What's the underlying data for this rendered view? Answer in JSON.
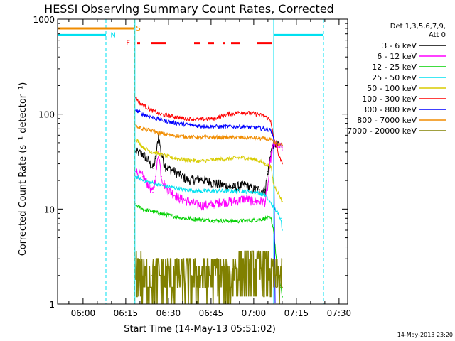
{
  "chart_data": {
    "type": "line",
    "title": "HESSI Observing Summary Count Rates, Corrected",
    "xlabel": "Start Time (14-May-13 05:51:02)",
    "ylabel": "Corrected Count Rate (s⁻¹ detector⁻¹)",
    "xlim_minutes_after_start": [
      0,
      102
    ],
    "ylim": [
      1,
      1000
    ],
    "y_scale": "log",
    "x_ticks": [
      "06:00",
      "06:15",
      "06:30",
      "06:45",
      "07:00",
      "07:15",
      "07:30"
    ],
    "x_tick_minutes": [
      8.97,
      23.97,
      38.97,
      53.97,
      68.97,
      83.97,
      98.97
    ],
    "y_ticks": [
      "1",
      "10",
      "100",
      "1000"
    ],
    "y_tick_values": [
      1,
      10,
      100,
      1000
    ],
    "legend_header": [
      "Det 1,3,5,6,7,9,",
      "Att 0"
    ],
    "legend_position": "right",
    "footer_date": "14-May-2013 23:20",
    "markers": {
      "N": {
        "label": "N",
        "color": "#00e0f0"
      },
      "S": {
        "label": "S",
        "color": "#f08c00"
      },
      "F": {
        "label": "F",
        "color": "#ff0000"
      }
    },
    "bars": [
      {
        "label": "N",
        "color": "#00e0f0",
        "y": 680,
        "segments": [
          [
            0,
            17
          ],
          [
            76,
            93.5
          ]
        ]
      },
      {
        "label": "S",
        "color": "#f08c00",
        "y": 800,
        "segments": [
          [
            0,
            27
          ]
        ]
      },
      {
        "label": "F",
        "color": "#ff0000",
        "y": 560,
        "segments": [
          [
            28,
            29
          ],
          [
            33,
            38
          ],
          [
            48,
            50
          ],
          [
            53,
            55
          ],
          [
            58,
            59
          ],
          [
            61,
            64
          ],
          [
            70,
            75.5
          ]
        ]
      }
    ],
    "vlines": [
      {
        "t": 0,
        "color": "#00e0f0",
        "style": "solid"
      },
      {
        "t": 17,
        "color": "#00e0f0",
        "style": "dashed"
      },
      {
        "t": 27,
        "color": "#f08c00",
        "style": "dashed"
      },
      {
        "t": 27.2,
        "color": "#00e0f0",
        "style": "solid"
      },
      {
        "t": 76,
        "color": "#00e0f0",
        "style": "solid"
      },
      {
        "t": 93.5,
        "color": "#00e0f0",
        "style": "dashed"
      }
    ],
    "series": [
      {
        "name": "3 - 6 keV",
        "color": "#000000",
        "t": [
          27.5,
          30,
          32,
          33.5,
          34.5,
          35.5,
          36.5,
          38,
          40,
          43,
          46,
          50,
          54,
          58,
          62,
          66,
          69,
          71,
          73,
          74,
          75,
          76,
          77.5,
          79
        ],
        "v": [
          40,
          38,
          32,
          27,
          34,
          60,
          38,
          28,
          26,
          23,
          20,
          21,
          19,
          18,
          17,
          18,
          16,
          16,
          16,
          25,
          40,
          50,
          47,
          47
        ]
      },
      {
        "name": "6 - 12 keV",
        "color": "#ff00ff",
        "t": [
          27.5,
          30,
          32,
          33.5,
          34.5,
          35.5,
          36.5,
          38,
          40,
          43,
          46,
          50,
          54,
          58,
          62,
          66,
          69,
          71,
          73,
          74,
          75,
          76,
          77.5,
          79
        ],
        "v": [
          25,
          22,
          18,
          15,
          22,
          40,
          22,
          17,
          15,
          13,
          12,
          11,
          11,
          12,
          12,
          13,
          12,
          12,
          12,
          18,
          35,
          48,
          45,
          45
        ]
      },
      {
        "name": "12 - 25 keV",
        "color": "#00d000",
        "t": [
          27.5,
          30,
          33,
          36,
          40,
          45,
          50,
          55,
          60,
          65,
          70,
          73,
          75,
          76,
          76.5,
          77.5,
          78.5,
          79
        ],
        "v": [
          11,
          10,
          9.5,
          9,
          8.5,
          8,
          7.8,
          7.6,
          7.5,
          7.5,
          7.7,
          8,
          8,
          6,
          4,
          2,
          1.5,
          1.2
        ]
      },
      {
        "name": "25 - 50 keV",
        "color": "#00e0f0",
        "t": [
          27.5,
          30,
          33,
          36,
          40,
          45,
          50,
          55,
          60,
          65,
          70,
          73,
          74.5,
          75.5,
          76.5,
          77.5,
          78.5,
          79
        ],
        "v": [
          22,
          20,
          19,
          18,
          17,
          16,
          15.5,
          15.5,
          15.5,
          15.5,
          15,
          14,
          12,
          11,
          10,
          9,
          8,
          6
        ]
      },
      {
        "name": "50 - 100 keV",
        "color": "#d8cc00",
        "t": [
          27.5,
          30,
          33,
          36,
          40,
          45,
          50,
          55,
          60,
          65,
          70,
          73,
          75,
          76,
          77,
          78,
          79
        ],
        "v": [
          55,
          45,
          40,
          38,
          35,
          33,
          32,
          33,
          34,
          35,
          33,
          30,
          28,
          18,
          16,
          14,
          12
        ]
      },
      {
        "name": "100 - 300 keV",
        "color": "#ff0000",
        "t": [
          27.5,
          29,
          31,
          33,
          36,
          40,
          45,
          50,
          55,
          60,
          65,
          70,
          73,
          75,
          76,
          77,
          78,
          79
        ],
        "v": [
          150,
          130,
          120,
          110,
          100,
          95,
          90,
          88,
          90,
          100,
          105,
          100,
          95,
          85,
          55,
          45,
          35,
          30
        ]
      },
      {
        "name": "300 - 800 keV",
        "color": "#0000ff",
        "t": [
          27.5,
          30,
          33,
          36,
          40,
          45,
          50,
          55,
          60,
          65,
          70,
          73,
          75,
          76,
          76.5
        ],
        "v": [
          110,
          100,
          93,
          88,
          82,
          78,
          75,
          74,
          74,
          74,
          72,
          70,
          68,
          55,
          1
        ]
      },
      {
        "name": "800 - 7000 keV",
        "color": "#f08c00",
        "t": [
          27.5,
          30,
          33,
          36,
          40,
          45,
          50,
          55,
          60,
          65,
          70,
          73,
          75,
          76,
          77,
          78,
          79
        ],
        "v": [
          75,
          70,
          67,
          63,
          60,
          58,
          57,
          57,
          57,
          57,
          56,
          55,
          54,
          50,
          49,
          48,
          47
        ]
      },
      {
        "name": "7000 - 20000 keV",
        "color": "#808000",
        "t": [
          27.5,
          29,
          31,
          33,
          35,
          38,
          41,
          44,
          47,
          50,
          53,
          56,
          59,
          62,
          65,
          68,
          71,
          74,
          76,
          77,
          78,
          79
        ],
        "v": [
          3,
          2.5,
          2,
          2,
          1.5,
          1.5,
          2,
          1.5,
          2,
          2,
          1.8,
          2.5,
          2,
          2.5,
          3,
          2.5,
          3,
          3,
          2,
          1.5,
          2,
          1.5
        ]
      }
    ]
  }
}
